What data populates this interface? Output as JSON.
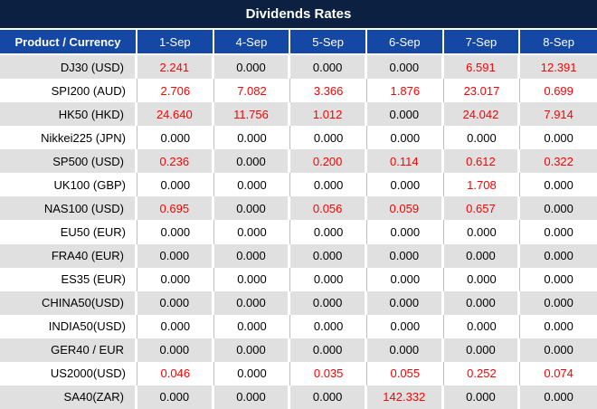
{
  "title": "Dividends Rates",
  "columns": [
    "Product / Currency",
    "1-Sep",
    "4-Sep",
    "5-Sep",
    "6-Sep",
    "7-Sep",
    "8-Sep"
  ],
  "rows": [
    {
      "product": "DJ30 (USD)",
      "values": [
        "2.241",
        "0.000",
        "0.000",
        "0.000",
        "6.591",
        "12.391"
      ]
    },
    {
      "product": "SPI200 (AUD)",
      "values": [
        "2.706",
        "7.082",
        "3.366",
        "1.876",
        "23.017",
        "0.699"
      ]
    },
    {
      "product": "HK50 (HKD)",
      "values": [
        "24.640",
        "11.756",
        "1.012",
        "0.000",
        "24.042",
        "7.914"
      ]
    },
    {
      "product": "Nikkei225 (JPN)",
      "values": [
        "0.000",
        "0.000",
        "0.000",
        "0.000",
        "0.000",
        "0.000"
      ]
    },
    {
      "product": "SP500 (USD)",
      "values": [
        "0.236",
        "0.000",
        "0.200",
        "0.114",
        "0.612",
        "0.322"
      ]
    },
    {
      "product": "UK100 (GBP)",
      "values": [
        "0.000",
        "0.000",
        "0.000",
        "0.000",
        "1.708",
        "0.000"
      ]
    },
    {
      "product": "NAS100 (USD)",
      "values": [
        "0.695",
        "0.000",
        "0.056",
        "0.059",
        "0.657",
        "0.000"
      ]
    },
    {
      "product": "EU50 (EUR)",
      "values": [
        "0.000",
        "0.000",
        "0.000",
        "0.000",
        "0.000",
        "0.000"
      ]
    },
    {
      "product": "FRA40 (EUR)",
      "values": [
        "0.000",
        "0.000",
        "0.000",
        "0.000",
        "0.000",
        "0.000"
      ]
    },
    {
      "product": "ES35 (EUR)",
      "values": [
        "0.000",
        "0.000",
        "0.000",
        "0.000",
        "0.000",
        "0.000"
      ]
    },
    {
      "product": "CHINA50(USD)",
      "values": [
        "0.000",
        "0.000",
        "0.000",
        "0.000",
        "0.000",
        "0.000"
      ]
    },
    {
      "product": "INDIA50(USD)",
      "values": [
        "0.000",
        "0.000",
        "0.000",
        "0.000",
        "0.000",
        "0.000"
      ]
    },
    {
      "product": "GER40 / EUR",
      "values": [
        "0.000",
        "0.000",
        "0.000",
        "0.000",
        "0.000",
        "0.000"
      ]
    },
    {
      "product": "US2000(USD)",
      "values": [
        "0.046",
        "0.000",
        "0.035",
        "0.055",
        "0.252",
        "0.074"
      ]
    },
    {
      "product": "SA40(ZAR)",
      "values": [
        "0.000",
        "0.000",
        "0.000",
        "142.332",
        "0.000",
        "0.000"
      ]
    }
  ],
  "colors": {
    "title_bg": "#0c2142",
    "header_bg": "#1547a5",
    "row_alt_bg": "#e0e0e0",
    "row_bg": "#ffffff",
    "value_nonzero": "#fe0000",
    "value_zero": "#000000"
  }
}
